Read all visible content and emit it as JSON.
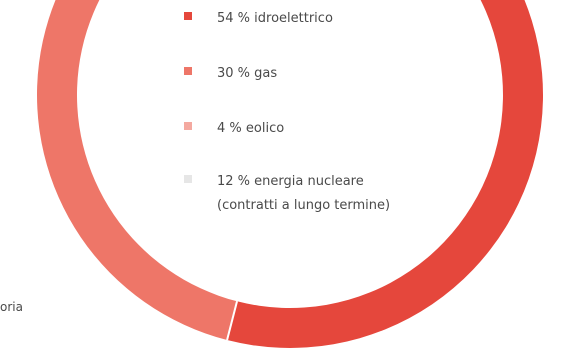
{
  "chart_data": {
    "type": "pie",
    "title": "",
    "slices": [
      {
        "label": "54 % idroelettrico",
        "value": 54,
        "color": "#e5473c"
      },
      {
        "label": "30 % gas",
        "value": 30,
        "color": "#ee7668"
      },
      {
        "label": "4 % eolico",
        "value": 4,
        "color": "#f4a9a0"
      },
      {
        "label": "12 % energia nucleare",
        "label_line2": "(contratti a lungo termine)",
        "value": 12,
        "color": "#e6e6e6"
      }
    ]
  },
  "left_fragment": "oria"
}
